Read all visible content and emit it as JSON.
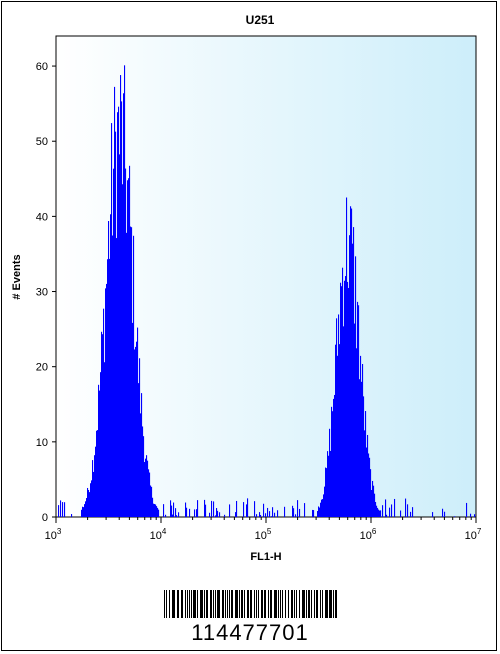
{
  "chart_data": {
    "type": "histogram",
    "title": "U251",
    "xlabel": "FL1-H",
    "ylabel": "# Events",
    "x_scale": "log",
    "xlim": [
      1000,
      10000000
    ],
    "ylim": [
      0,
      64
    ],
    "y_ticks": [
      0,
      10,
      20,
      30,
      40,
      50,
      60
    ],
    "x_tick_labels": [
      {
        "base": "10",
        "exp": "3"
      },
      {
        "base": "10",
        "exp": "4"
      },
      {
        "base": "10",
        "exp": "5"
      },
      {
        "base": "10",
        "exp": "6"
      },
      {
        "base": "10",
        "exp": "7"
      }
    ],
    "background_color": "#e6f4fb",
    "fill_color": "#0000ff",
    "grid": false,
    "peaks": [
      {
        "center": 4000,
        "max_count": 64
      },
      {
        "center": 600000,
        "max_count": 47
      }
    ]
  },
  "barcode": {
    "number": "114477701"
  }
}
